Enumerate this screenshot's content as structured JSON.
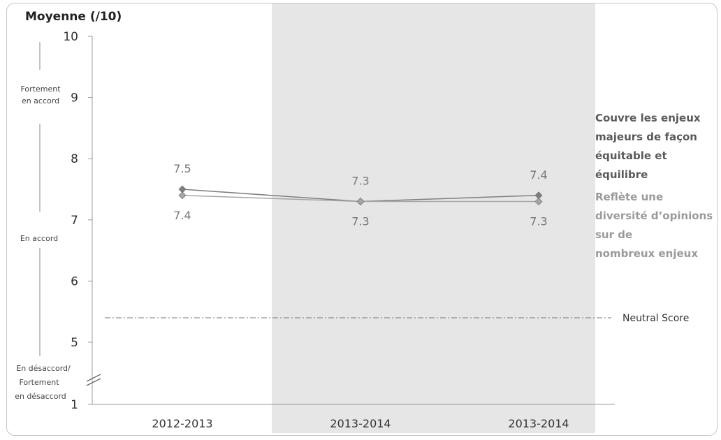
{
  "chart_data": {
    "type": "line",
    "title": "Moyenne (/10)",
    "categories": [
      "2012-2013",
      "2013-2014",
      "2013-2014"
    ],
    "y_ticks": [
      "10",
      "9",
      "8",
      "7",
      "6",
      "5",
      "1"
    ],
    "ylim": [
      1,
      10
    ],
    "axis_break": true,
    "y_bands": [
      "Fortement en accord",
      "En accord",
      "En désaccord/ Fortement en désaccord"
    ],
    "series": [
      {
        "name": "Couvre les enjeux majeurs de façon équitable et équilibre",
        "values": [
          7.5,
          7.3,
          7.4
        ],
        "labels": [
          "7.5",
          "7.3",
          "7.4"
        ],
        "color": "#7f7f7f"
      },
      {
        "name": "Reflète une diversité d'opinions sur de nombreux enjeux",
        "values": [
          7.4,
          7.3,
          7.3
        ],
        "labels": [
          "7.4",
          "7.3",
          "7.3"
        ],
        "color": "#a6a6a6"
      }
    ],
    "reference_line": {
      "label": "Neutral Score",
      "value": 5.4
    },
    "shaded_categories": [
      1,
      2
    ],
    "grid": false
  }
}
